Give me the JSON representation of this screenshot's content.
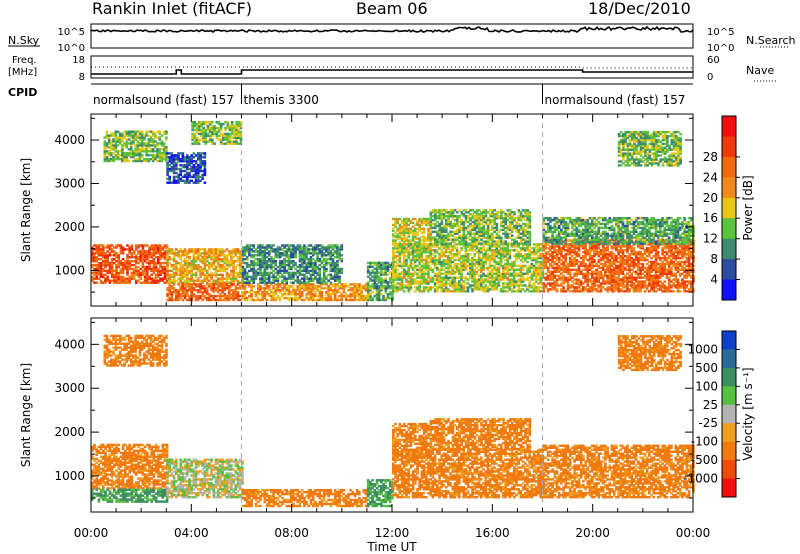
{
  "header": {
    "title": "Rankin Inlet (fitACF)",
    "beam": "Beam 06",
    "date": "18/Dec/2010"
  },
  "top_panels": {
    "noise": {
      "left_label": "N.Sky",
      "right_label": "N.Search",
      "ticks_left": [
        "10^5",
        "10^0"
      ],
      "ticks_right": [
        "10^5",
        "10^0"
      ]
    },
    "freq": {
      "left_label_1": "Freq.",
      "left_label_2": "[MHz]",
      "right_label": "Nave",
      "ticks_left": [
        "18",
        "8"
      ],
      "ticks_right": [
        "60",
        "0"
      ]
    },
    "cpid": {
      "label": "CPID",
      "segments": [
        {
          "name": "normalsound (fast) 157",
          "start_hour": 0,
          "end_hour": 6
        },
        {
          "name": "themis 3300",
          "start_hour": 6,
          "end_hour": 18
        },
        {
          "name": "normalsound (fast) 157",
          "start_hour": 18,
          "end_hour": 24
        }
      ]
    }
  },
  "chart_data": [
    {
      "type": "heatmap",
      "name": "power",
      "xlabel": "Time UT",
      "ylabel": "Slant Range [km]",
      "xlim": [
        0,
        24
      ],
      "ylim": [
        180,
        4600
      ],
      "x_ticks": [
        "00:00",
        "04:00",
        "08:00",
        "12:00",
        "16:00",
        "20:00",
        "00:00"
      ],
      "y_ticks": [
        1000,
        2000,
        3000,
        4000
      ],
      "colorbar": {
        "label": "Power [dB]",
        "ticks": [
          "4",
          "8",
          "12",
          "16",
          "20",
          "24",
          "28"
        ],
        "colors": [
          "#1010ff",
          "#2c4d9e",
          "#3e8a6e",
          "#5bc23c",
          "#e8c616",
          "#f08a1c",
          "#f26a10",
          "#f03a0a",
          "#ee1010"
        ]
      },
      "regions": [
        {
          "t": [
            0.0,
            3.0
          ],
          "r": [
            700,
            1600
          ],
          "v": 28
        },
        {
          "t": [
            3.0,
            6.0
          ],
          "r": [
            700,
            1500
          ],
          "v": 20
        },
        {
          "t": [
            3.0,
            6.0
          ],
          "r": [
            300,
            700
          ],
          "v": 26
        },
        {
          "t": [
            6.0,
            11.0
          ],
          "r": [
            300,
            700
          ],
          "v": 22
        },
        {
          "t": [
            6.0,
            10.0
          ],
          "r": [
            700,
            1600
          ],
          "v": 10
        },
        {
          "t": [
            11.0,
            12.0
          ],
          "r": [
            300,
            1200
          ],
          "v": 12
        },
        {
          "t": [
            12.0,
            13.5
          ],
          "r": [
            1400,
            2200
          ],
          "v": 18
        },
        {
          "t": [
            12.0,
            18.0
          ],
          "r": [
            500,
            1600
          ],
          "v": 16
        },
        {
          "t": [
            13.5,
            17.5
          ],
          "r": [
            1600,
            2400
          ],
          "v": 14
        },
        {
          "t": [
            18.0,
            24.0
          ],
          "r": [
            500,
            1700
          ],
          "v": 26
        },
        {
          "t": [
            18.0,
            24.0
          ],
          "r": [
            1600,
            2200
          ],
          "v": 12
        },
        {
          "t": [
            0.5,
            3.0
          ],
          "r": [
            3500,
            4200
          ],
          "v": 14
        },
        {
          "t": [
            3.0,
            4.5
          ],
          "r": [
            3000,
            3700
          ],
          "v": 6
        },
        {
          "t": [
            4.0,
            6.0
          ],
          "r": [
            3900,
            4400
          ],
          "v": 14
        },
        {
          "t": [
            21.0,
            23.5
          ],
          "r": [
            3400,
            4200
          ],
          "v": 14
        }
      ]
    },
    {
      "type": "heatmap",
      "name": "velocity",
      "xlabel": "Time UT",
      "ylabel": "Slant Range [km]",
      "xlim": [
        0,
        24
      ],
      "ylim": [
        180,
        4600
      ],
      "x_ticks": [
        "00:00",
        "04:00",
        "08:00",
        "12:00",
        "16:00",
        "20:00",
        "00:00"
      ],
      "y_ticks": [
        1000,
        2000,
        3000,
        4000
      ],
      "colorbar": {
        "label": "Velocity [m s⁻¹]",
        "ticks": [
          "1000",
          "500",
          "100",
          "25",
          "-25",
          "-100",
          "-500",
          "-1000"
        ],
        "colors": [
          "#1040c8",
          "#2a6a98",
          "#3c8e62",
          "#56c040",
          "#b4b4b4",
          "#f0a020",
          "#f07a10",
          "#f04a0a",
          "#ee1010"
        ]
      },
      "regions": [
        {
          "t": [
            0.0,
            3.0
          ],
          "r": [
            700,
            1700
          ],
          "v": -150
        },
        {
          "t": [
            0.0,
            3.0
          ],
          "r": [
            400,
            700
          ],
          "v": 120
        },
        {
          "t": [
            3.0,
            6.0
          ],
          "r": [
            500,
            1400
          ],
          "v": 0
        },
        {
          "t": [
            6.0,
            11.0
          ],
          "r": [
            300,
            700
          ],
          "v": -150
        },
        {
          "t": [
            11.0,
            12.0
          ],
          "r": [
            300,
            900
          ],
          "v": 120
        },
        {
          "t": [
            12.0,
            13.5
          ],
          "r": [
            1400,
            2200
          ],
          "v": -150
        },
        {
          "t": [
            12.0,
            18.0
          ],
          "r": [
            500,
            1600
          ],
          "v": -150
        },
        {
          "t": [
            13.5,
            17.5
          ],
          "r": [
            1600,
            2300
          ],
          "v": -150
        },
        {
          "t": [
            18.0,
            24.0
          ],
          "r": [
            500,
            1700
          ],
          "v": -150
        },
        {
          "t": [
            0.5,
            3.0
          ],
          "r": [
            3500,
            4200
          ],
          "v": -150
        },
        {
          "t": [
            21.0,
            23.5
          ],
          "r": [
            3400,
            4200
          ],
          "v": -150
        }
      ]
    }
  ]
}
